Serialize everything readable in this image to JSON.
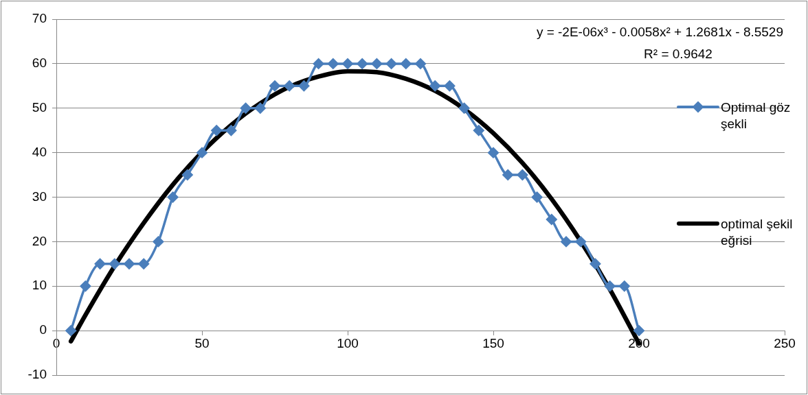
{
  "chart_data": {
    "type": "line",
    "xlim": [
      0,
      250
    ],
    "xticks": [
      0,
      50,
      100,
      150,
      200,
      250
    ],
    "ylim": [
      -10,
      70
    ],
    "yticks": [
      -10,
      0,
      10,
      20,
      30,
      40,
      50,
      60,
      70
    ],
    "grid": "y",
    "legend": "right",
    "annotations": [
      "y = -2E-06x³ - 0.0058x² + 1.2681x - 8.5529",
      "R² = 0.9642"
    ],
    "series": [
      {
        "name": "Optimal göz şekli",
        "color": "#4a7ebb",
        "marker": "diamond",
        "x": [
          5,
          10,
          15,
          20,
          25,
          30,
          35,
          40,
          45,
          50,
          55,
          60,
          65,
          70,
          75,
          80,
          85,
          90,
          95,
          100,
          105,
          110,
          115,
          120,
          125,
          130,
          135,
          140,
          145,
          150,
          155,
          160,
          165,
          170,
          175,
          180,
          185,
          190,
          195,
          200
        ],
        "values": [
          0,
          10,
          15,
          15,
          15,
          15,
          20,
          30,
          35,
          40,
          45,
          45,
          50,
          50,
          55,
          55,
          55,
          60,
          60,
          60,
          60,
          60,
          60,
          60,
          60,
          55,
          55,
          50,
          45,
          40,
          35,
          35,
          30,
          25,
          20,
          20,
          15,
          10,
          10,
          0
        ]
      },
      {
        "name": "optimal şekil eğrisi",
        "color": "#000000",
        "marker": "none",
        "x": [
          5,
          10,
          20,
          30,
          40,
          50,
          60,
          70,
          80,
          90,
          100,
          110,
          120,
          130,
          140,
          150,
          160,
          170,
          180,
          190,
          200
        ],
        "values": [
          -2.4,
          3.5,
          14.5,
          24.2,
          32.8,
          40.1,
          46.2,
          51.1,
          54.8,
          57.1,
          58.3,
          58.1,
          56.6,
          53.9,
          49.8,
          44.4,
          37.7,
          29.6,
          20.1,
          9.3,
          -2.9
        ]
      }
    ]
  }
}
